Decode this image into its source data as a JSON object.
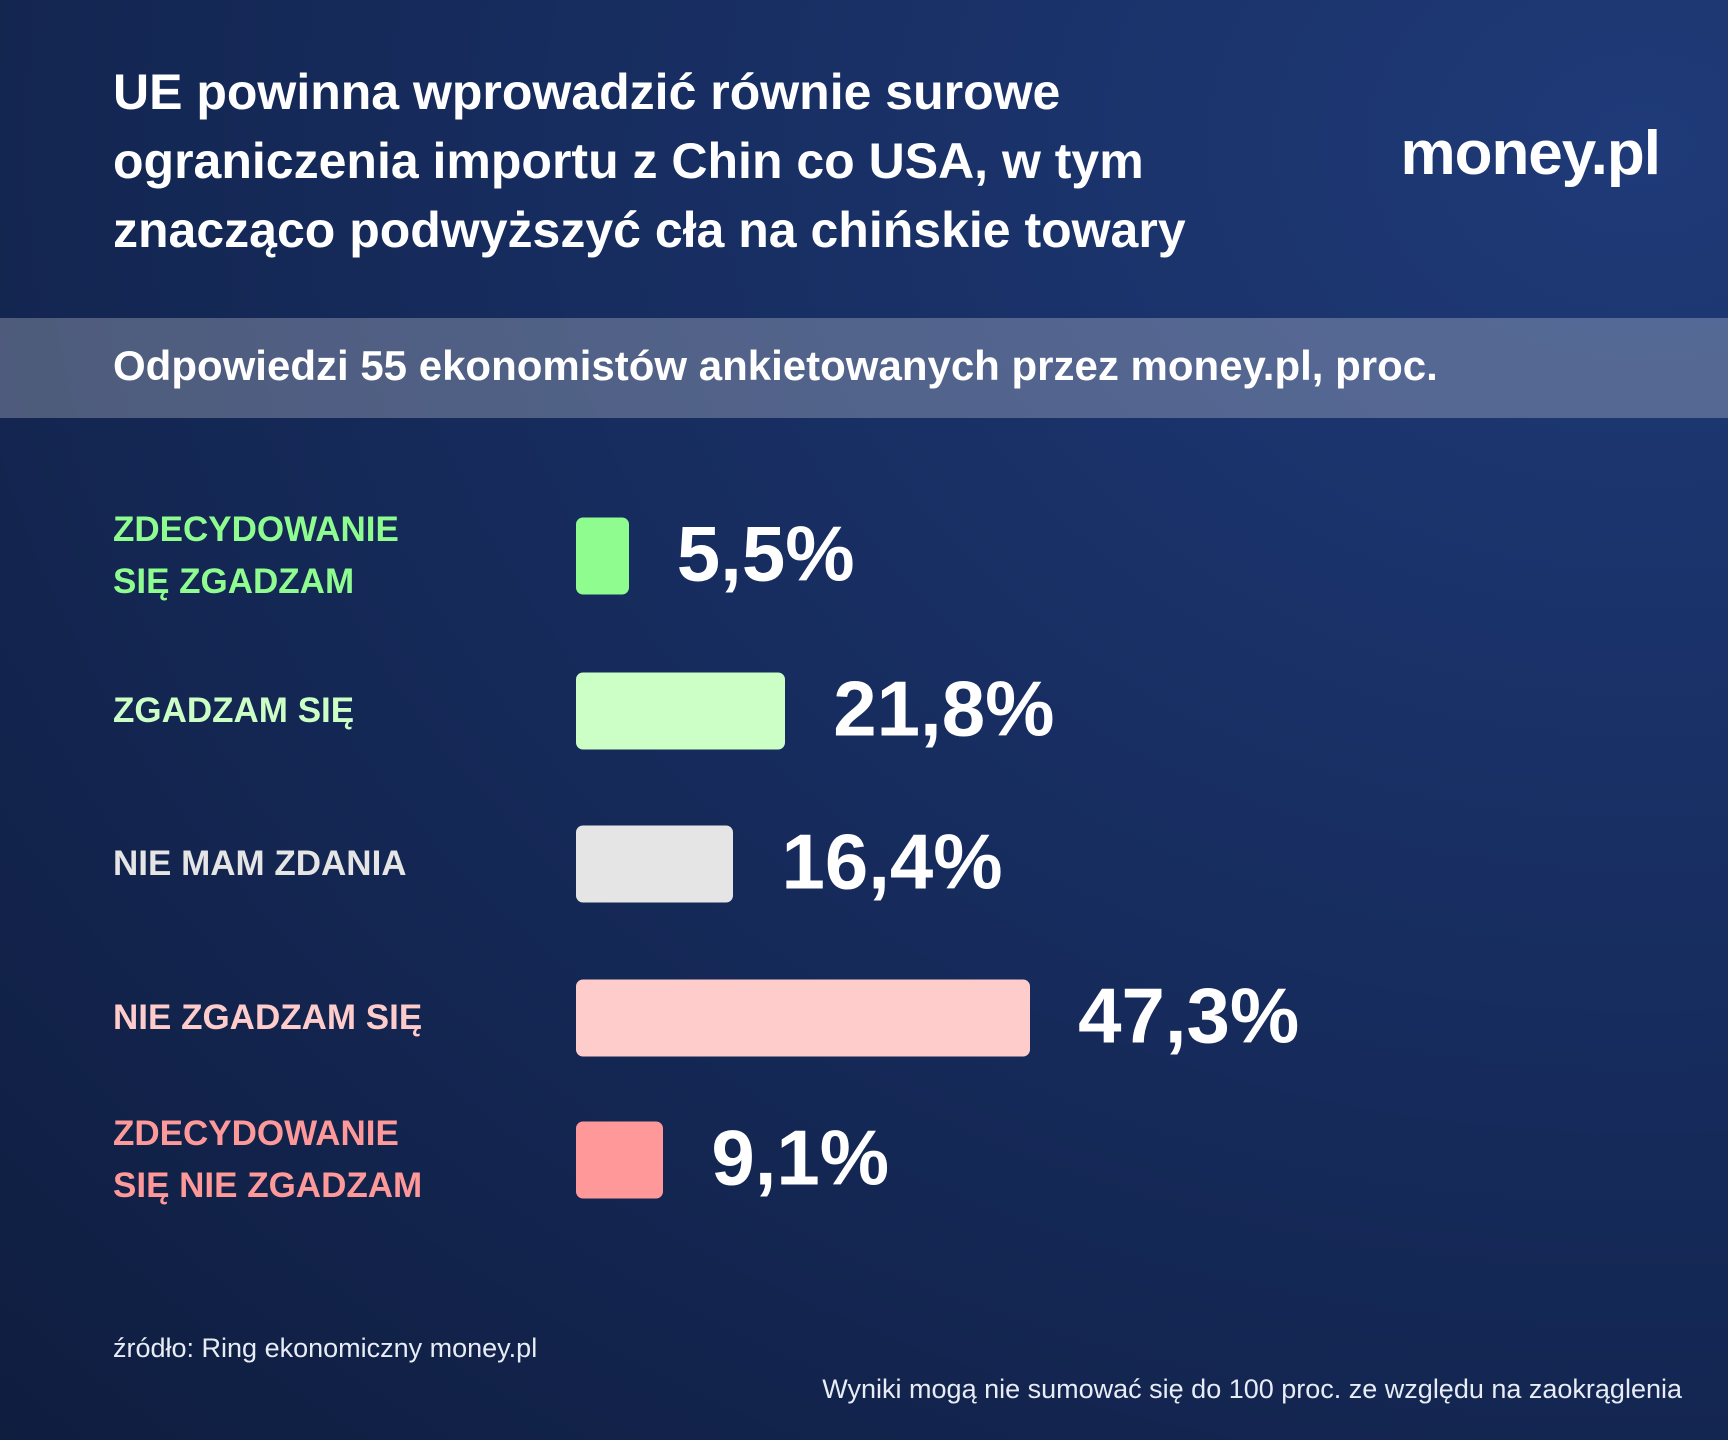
{
  "chart_data": {
    "type": "bar",
    "orientation": "horizontal",
    "title": "UE powinna wprowadzić równie surowe ograniczenia importu z Chin co USA, w tym znacząco podwyższyć cła na chińskie towary",
    "subtitle": "Odpowiedzi 55 ekonomistów ankietowanych przez money.pl, proc.",
    "logo": "money.pl",
    "categories": [
      "ZDECYDOWANIE SIĘ ZGADZAM",
      "ZGADZAM SIĘ",
      "NIE MAM ZDANIA",
      "NIE ZGADZAM SIĘ",
      "ZDECYDOWANIE SIĘ NIE ZGADZAM"
    ],
    "values": [
      5.5,
      21.8,
      16.4,
      47.3,
      9.1
    ],
    "value_labels": [
      "5,5%",
      "21,8%",
      "16,4%",
      "47,3%",
      "9,1%"
    ],
    "colors": [
      "#8ffc8f",
      "#ccffc6",
      "#e5e5e5",
      "#ffcccc",
      "#ff9999"
    ],
    "source": "źródło: Ring ekonomiczny money.pl",
    "note": "Wyniki mogą nie sumować się do 100 proc. ze względu na zaokrąglenia"
  }
}
